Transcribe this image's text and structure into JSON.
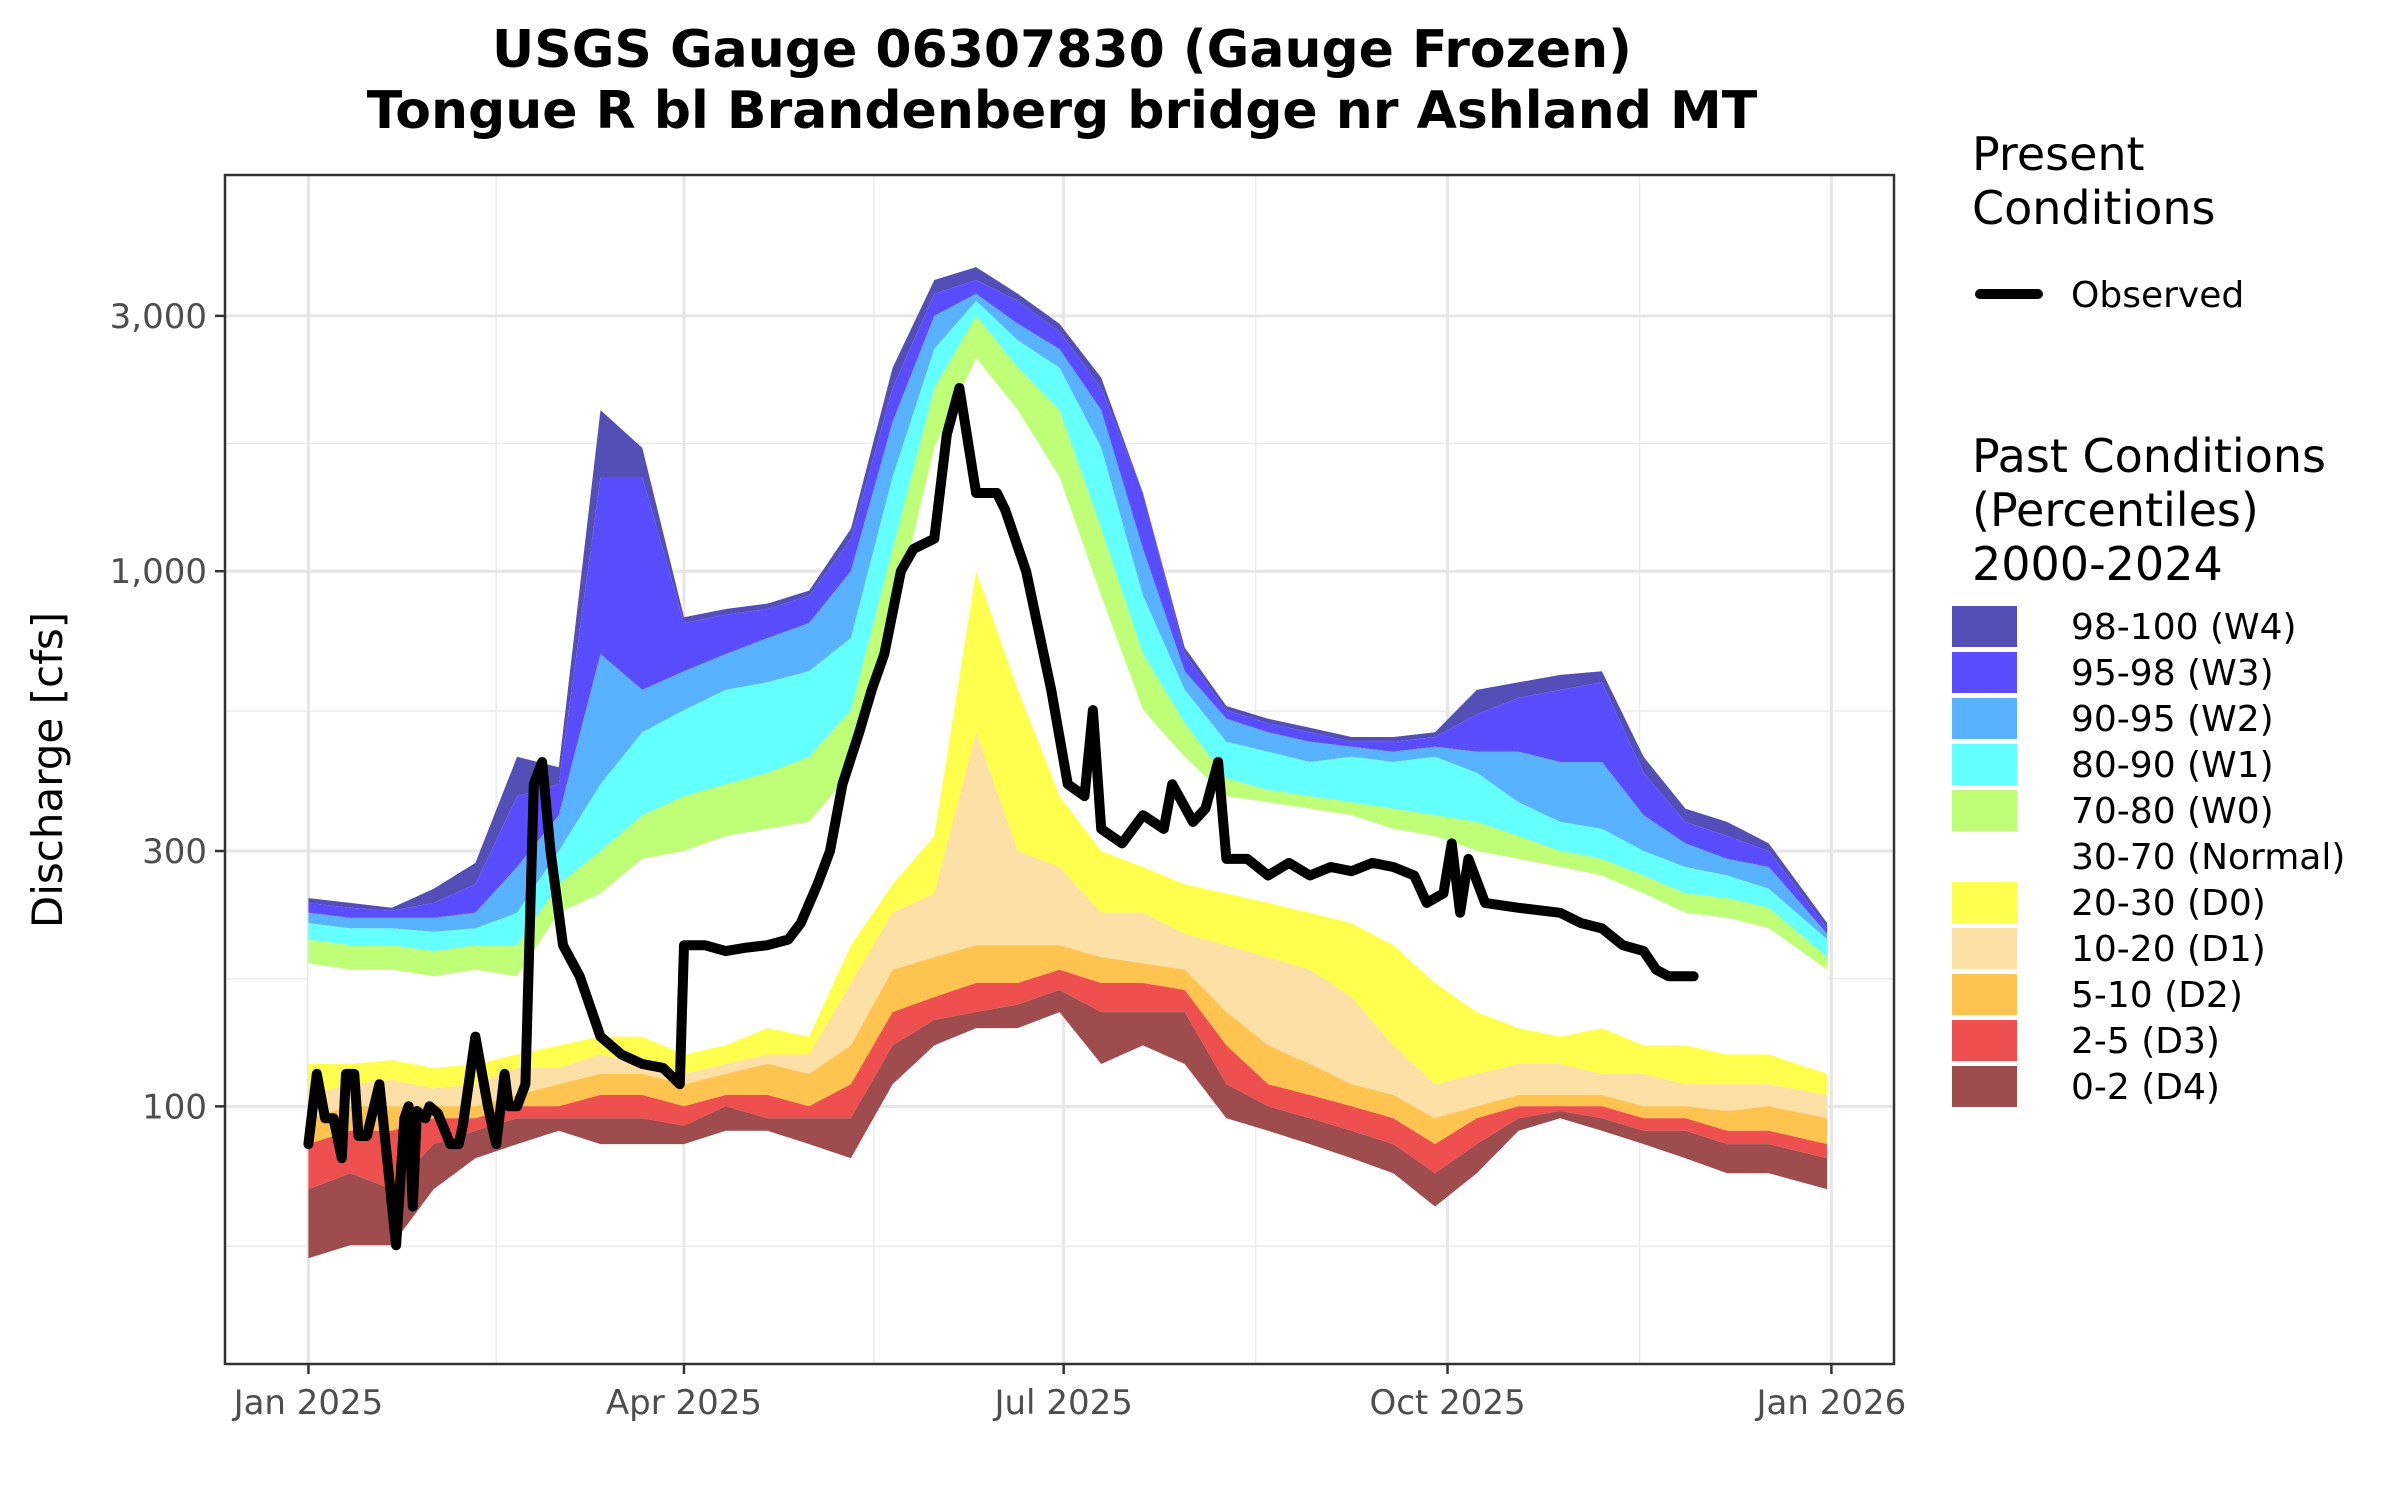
{
  "chart_data": {
    "type": "area",
    "title": "USGS Gauge 06307830 (Gauge Frozen)",
    "subtitle": "Tongue R bl Brandenberg bridge nr Ashland MT",
    "xlabel": "",
    "ylabel": "Discharge [cfs]",
    "y_scale": "log",
    "ylim": [
      33,
      5500
    ],
    "y_ticks": [
      {
        "value": 100,
        "label": "100"
      },
      {
        "value": 300,
        "label": "300"
      },
      {
        "value": 1000,
        "label": "1,000"
      },
      {
        "value": 3000,
        "label": "3,000"
      }
    ],
    "x_unit": "day of year since Jan 1 2025",
    "xlim": [
      -20,
      380
    ],
    "x_ticks": [
      {
        "value": 0,
        "label": "Jan 2025"
      },
      {
        "value": 90,
        "label": "Apr 2025"
      },
      {
        "value": 181,
        "label": "Jul 2025"
      },
      {
        "value": 273,
        "label": "Oct 2025"
      },
      {
        "value": 365,
        "label": "Jan 2026"
      }
    ],
    "grid": true,
    "legend_placement": "right",
    "legend_present_title": "Present Conditions",
    "legend_past_title": "Past Conditions (Percentiles) 2000-2024",
    "percentile_levels": [
      "p0",
      "p2",
      "p5",
      "p10",
      "p20",
      "p30",
      "p70",
      "p80",
      "p90",
      "p95",
      "p98",
      "p100"
    ],
    "percentile_days": [
      0,
      10,
      20,
      30,
      40,
      50,
      60,
      70,
      80,
      90,
      100,
      110,
      120,
      130,
      140,
      150,
      160,
      170,
      180,
      190,
      200,
      210,
      220,
      230,
      240,
      250,
      260,
      270,
      280,
      290,
      300,
      310,
      320,
      330,
      340,
      350,
      364
    ],
    "percentiles": [
      [
        52,
        70,
        85,
        95,
        105,
        120,
        185,
        205,
        220,
        230,
        240,
        245
      ],
      [
        55,
        75,
        90,
        100,
        110,
        120,
        180,
        200,
        215,
        225,
        235,
        240
      ],
      [
        55,
        70,
        90,
        100,
        112,
        122,
        180,
        200,
        215,
        225,
        232,
        235
      ],
      [
        70,
        85,
        95,
        100,
        108,
        118,
        175,
        195,
        212,
        225,
        240,
        255
      ],
      [
        80,
        90,
        95,
        100,
        110,
        120,
        180,
        200,
        215,
        230,
        260,
        285
      ],
      [
        85,
        95,
        100,
        105,
        118,
        125,
        175,
        200,
        230,
        280,
        380,
        450
      ],
      [
        90,
        95,
        100,
        110,
        118,
        130,
        230,
        260,
        300,
        350,
        400,
        430
      ],
      [
        85,
        95,
        105,
        115,
        125,
        135,
        250,
        300,
        400,
        700,
        1500,
        2000
      ],
      [
        85,
        95,
        105,
        115,
        120,
        135,
        290,
        350,
        500,
        600,
        1500,
        1700
      ],
      [
        85,
        92,
        100,
        110,
        115,
        125,
        300,
        380,
        550,
        650,
        800,
        820
      ],
      [
        90,
        100,
        105,
        115,
        120,
        130,
        320,
        400,
        600,
        700,
        830,
        850
      ],
      [
        90,
        95,
        105,
        120,
        125,
        140,
        330,
        420,
        620,
        750,
        850,
        870
      ],
      [
        85,
        95,
        100,
        115,
        125,
        135,
        340,
        450,
        650,
        800,
        900,
        920
      ],
      [
        80,
        95,
        110,
        130,
        170,
        200,
        420,
        550,
        750,
        1000,
        1150,
        1200
      ],
      [
        110,
        130,
        150,
        180,
        230,
        260,
        800,
        1100,
        1500,
        1900,
        2200,
        2400
      ],
      [
        130,
        145,
        160,
        190,
        250,
        320,
        1700,
        2200,
        2600,
        3000,
        3300,
        3500
      ],
      [
        140,
        150,
        170,
        200,
        500,
        1000,
        2500,
        3000,
        3200,
        3300,
        3500,
        3700
      ],
      [
        140,
        155,
        170,
        200,
        300,
        600,
        2000,
        2400,
        2700,
        2900,
        3200,
        3300
      ],
      [
        150,
        165,
        180,
        200,
        280,
        380,
        1500,
        2000,
        2400,
        2600,
        2800,
        2900
      ],
      [
        120,
        150,
        170,
        190,
        230,
        300,
        900,
        1200,
        1700,
        2000,
        2200,
        2300
      ],
      [
        130,
        150,
        170,
        185,
        230,
        280,
        550,
        700,
        900,
        1100,
        1400,
        1400
      ],
      [
        120,
        150,
        165,
        180,
        210,
        260,
        450,
        520,
        600,
        650,
        700,
        720
      ],
      [
        95,
        110,
        130,
        150,
        200,
        250,
        380,
        410,
        480,
        530,
        550,
        560
      ],
      [
        90,
        100,
        110,
        130,
        190,
        240,
        370,
        390,
        460,
        500,
        520,
        530
      ],
      [
        85,
        95,
        105,
        120,
        180,
        230,
        360,
        380,
        440,
        480,
        500,
        510
      ],
      [
        80,
        90,
        100,
        110,
        160,
        220,
        350,
        370,
        450,
        470,
        480,
        490
      ],
      [
        75,
        85,
        95,
        105,
        130,
        200,
        330,
        360,
        440,
        460,
        480,
        490
      ],
      [
        65,
        75,
        85,
        95,
        110,
        170,
        320,
        350,
        450,
        470,
        490,
        500
      ],
      [
        75,
        85,
        95,
        100,
        115,
        150,
        300,
        340,
        420,
        460,
        540,
        600
      ],
      [
        90,
        95,
        100,
        105,
        120,
        140,
        290,
        320,
        370,
        460,
        580,
        620
      ],
      [
        95,
        98,
        100,
        105,
        120,
        135,
        280,
        300,
        340,
        440,
        600,
        640
      ],
      [
        90,
        95,
        100,
        105,
        115,
        140,
        270,
        290,
        330,
        440,
        620,
        650
      ],
      [
        85,
        90,
        95,
        100,
        115,
        130,
        250,
        270,
        300,
        350,
        420,
        450
      ],
      [
        80,
        90,
        95,
        100,
        110,
        130,
        230,
        250,
        280,
        310,
        340,
        360
      ],
      [
        75,
        85,
        90,
        98,
        110,
        125,
        225,
        245,
        270,
        290,
        320,
        340
      ],
      [
        75,
        85,
        90,
        100,
        110,
        125,
        215,
        235,
        255,
        280,
        300,
        310
      ],
      [
        70,
        80,
        85,
        95,
        105,
        115,
        180,
        190,
        205,
        210,
        215,
        220
      ]
    ],
    "bands": [
      {
        "name": "98-100 (W4)",
        "lower": "p98",
        "upper": "p100",
        "color": "#534fb7"
      },
      {
        "name": "95-98 (W3)",
        "lower": "p95",
        "upper": "p98",
        "color": "#5a4dff"
      },
      {
        "name": "90-95 (W2)",
        "lower": "p90",
        "upper": "p95",
        "color": "#58b2ff"
      },
      {
        "name": "80-90 (W1)",
        "lower": "p80",
        "upper": "p90",
        "color": "#64ffff"
      },
      {
        "name": "70-80 (W0)",
        "lower": "p70",
        "upper": "p80",
        "color": "#bfff78"
      },
      {
        "name": "30-70 (Normal)",
        "lower": "p30",
        "upper": "p70",
        "color": "#ffffff"
      },
      {
        "name": "20-30 (D0)",
        "lower": "p20",
        "upper": "p30",
        "color": "#ffff4d"
      },
      {
        "name": "10-20 (D1)",
        "lower": "p10",
        "upper": "p20",
        "color": "#fde0a5"
      },
      {
        "name": "5-10 (D2)",
        "lower": "p5",
        "upper": "p10",
        "color": "#ffc44f"
      },
      {
        "name": "2-5 (D3)",
        "lower": "p2",
        "upper": "p5",
        "color": "#ee4f4f"
      },
      {
        "name": "0-2 (D4)",
        "lower": "p0",
        "upper": "p2",
        "color": "#9e4c4e"
      }
    ],
    "observed": {
      "name": "Observed",
      "color": "#000000",
      "x": [
        0,
        2,
        4,
        6,
        8,
        9,
        11,
        12,
        14,
        17,
        19,
        21,
        23,
        24,
        25,
        26,
        28,
        29,
        31,
        34,
        36,
        37,
        40,
        43,
        45,
        47,
        48,
        50,
        52,
        54,
        56,
        58,
        61,
        65,
        70,
        75,
        80,
        85,
        89,
        90,
        95,
        100,
        105,
        110,
        115,
        118,
        122,
        125,
        128,
        132,
        135,
        138,
        142,
        145,
        150,
        153,
        156,
        160,
        165,
        167,
        172,
        178,
        182,
        186,
        188,
        190,
        195,
        200,
        205,
        207,
        212,
        215,
        218,
        220,
        225,
        230,
        235,
        240,
        245,
        250,
        255,
        260,
        265,
        268,
        272,
        274,
        276,
        278,
        282,
        290,
        300,
        305,
        310,
        315,
        320,
        323,
        326,
        332
      ],
      "y": [
        85,
        115,
        95,
        95,
        80,
        115,
        115,
        88,
        88,
        110,
        78,
        55,
        95,
        100,
        65,
        98,
        95,
        100,
        97,
        85,
        85,
        92,
        135,
        100,
        85,
        115,
        100,
        100,
        110,
        400,
        440,
        300,
        200,
        175,
        135,
        125,
        120,
        118,
        110,
        200,
        200,
        195,
        198,
        200,
        205,
        220,
        260,
        300,
        400,
        500,
        600,
        700,
        1000,
        1100,
        1150,
        1800,
        2200,
        1400,
        1400,
        1300,
        1000,
        600,
        400,
        380,
        550,
        330,
        310,
        350,
        330,
        400,
        340,
        360,
        440,
        290,
        290,
        270,
        285,
        270,
        280,
        275,
        285,
        280,
        270,
        240,
        250,
        310,
        230,
        290,
        240,
        235,
        230,
        220,
        215,
        200,
        195,
        180,
        175,
        175
      ]
    }
  }
}
